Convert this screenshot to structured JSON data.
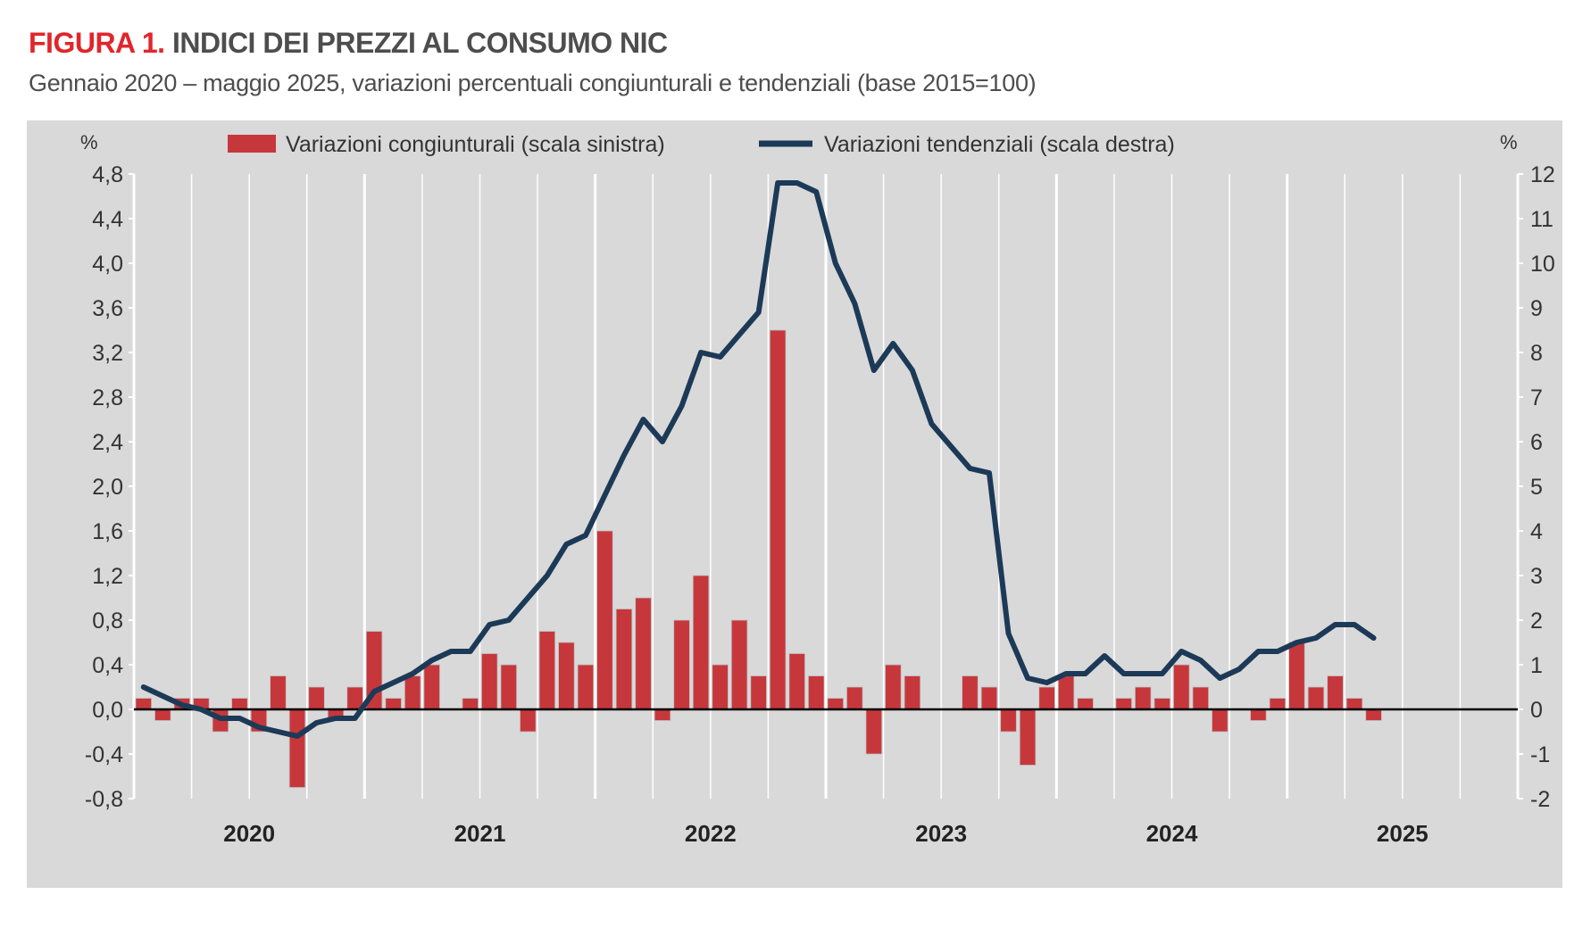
{
  "header": {
    "figure_label": "FIGURA 1.",
    "title": "INDICI DEI PREZZI AL CONSUMO NIC",
    "subtitle": "Gennaio 2020 – maggio 2025, variazioni percentuali congiunturali e tendenziali (base 2015=100)"
  },
  "chart_data": {
    "type": "bar",
    "left_axis": {
      "unit_label": "%",
      "ylim": [
        -0.8,
        4.8
      ],
      "ticks": [
        "4,8",
        "4,4",
        "4,0",
        "3,6",
        "3,2",
        "2,8",
        "2,4",
        "2,0",
        "1,6",
        "1,2",
        "0,8",
        "0,4",
        "0,0",
        "-0,4",
        "-0,8"
      ]
    },
    "right_axis": {
      "unit_label": "%",
      "ylim": [
        -2,
        12
      ],
      "ticks": [
        "12",
        "11",
        "10",
        "9",
        "8",
        "7",
        "6",
        "5",
        "4",
        "3",
        "2",
        "1",
        "0",
        "-1",
        "-2"
      ]
    },
    "x_axis": {
      "year_labels": [
        "2020",
        "2021",
        "2022",
        "2023",
        "2024",
        "2025"
      ]
    },
    "grid": "vertical-quarter-and-year",
    "legend_position": "top",
    "colors": {
      "bars": "#c6373c",
      "line": "#1c3a57",
      "plot_bg": "#d9d9d9",
      "grid": "#ffffff"
    },
    "series": [
      {
        "name": "Variazioni congiunturali (scala sinistra)",
        "type": "bar",
        "axis": "left",
        "values": [
          0.1,
          -0.1,
          0.1,
          0.1,
          -0.2,
          0.1,
          -0.2,
          0.3,
          -0.7,
          0.2,
          -0.1,
          0.2,
          0.7,
          0.1,
          0.3,
          0.4,
          0.0,
          0.1,
          0.5,
          0.4,
          -0.2,
          0.7,
          0.6,
          0.4,
          1.6,
          0.9,
          1.0,
          -0.1,
          0.8,
          1.2,
          0.4,
          0.8,
          0.3,
          3.4,
          0.5,
          0.3,
          0.1,
          0.2,
          -0.4,
          0.4,
          0.3,
          0.0,
          0.0,
          0.3,
          0.2,
          -0.2,
          -0.5,
          0.2,
          0.3,
          0.1,
          0.0,
          0.1,
          0.2,
          0.1,
          0.4,
          0.2,
          -0.2,
          0.0,
          -0.1,
          0.1,
          0.6,
          0.2,
          0.3,
          0.1,
          -0.1
        ]
      },
      {
        "name": "Variazioni tendenziali (scala destra)",
        "type": "line",
        "axis": "right",
        "values": [
          0.5,
          0.3,
          0.1,
          0.0,
          -0.2,
          -0.2,
          -0.4,
          -0.5,
          -0.6,
          -0.3,
          -0.2,
          -0.2,
          0.4,
          0.6,
          0.8,
          1.1,
          1.3,
          1.3,
          1.9,
          2.0,
          2.5,
          3.0,
          3.7,
          3.9,
          4.8,
          5.7,
          6.5,
          6.0,
          6.8,
          8.0,
          7.9,
          8.4,
          8.9,
          11.8,
          11.8,
          11.6,
          10.0,
          9.1,
          7.6,
          8.2,
          7.6,
          6.4,
          5.9,
          5.4,
          5.3,
          1.7,
          0.7,
          0.6,
          0.8,
          0.8,
          1.2,
          0.8,
          0.8,
          0.8,
          1.3,
          1.1,
          0.7,
          0.9,
          1.3,
          1.3,
          1.5,
          1.6,
          1.9,
          1.9,
          1.6
        ]
      }
    ]
  }
}
